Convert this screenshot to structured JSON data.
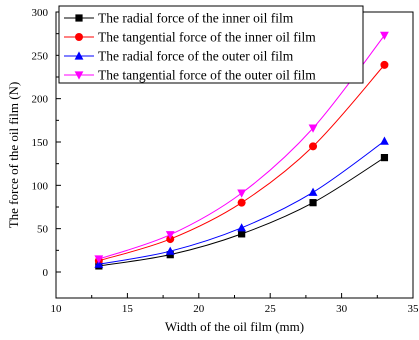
{
  "chart_data": {
    "type": "line",
    "title": "",
    "xlabel": "Width of the oil film (mm)",
    "ylabel": "The force of the oil film (N)",
    "xlim": [
      10,
      35
    ],
    "ylim": [
      -30,
      300
    ],
    "xticks": [
      10,
      15,
      20,
      25,
      30,
      35
    ],
    "yticks": [
      0,
      50,
      100,
      150,
      200,
      250,
      300
    ],
    "grid": false,
    "legend_position": "top-left",
    "x": [
      13,
      18,
      23,
      28,
      33
    ],
    "series": [
      {
        "name": "The radial force of the inner oil film",
        "values": [
          7,
          20,
          44,
          80,
          132
        ],
        "color": "#000000",
        "marker": "square"
      },
      {
        "name": "The tangential force of the inner oil film",
        "values": [
          13,
          38,
          80,
          145,
          239
        ],
        "color": "#ff0000",
        "marker": "circle"
      },
      {
        "name": "The radial force of the outer oil film",
        "values": [
          9,
          24,
          51,
          92,
          151
        ],
        "color": "#0000ff",
        "marker": "triangle-up"
      },
      {
        "name": "The tangential force of the outer oil film",
        "values": [
          15,
          43,
          91,
          166,
          273
        ],
        "color": "#ff00ff",
        "marker": "triangle-down"
      }
    ]
  }
}
